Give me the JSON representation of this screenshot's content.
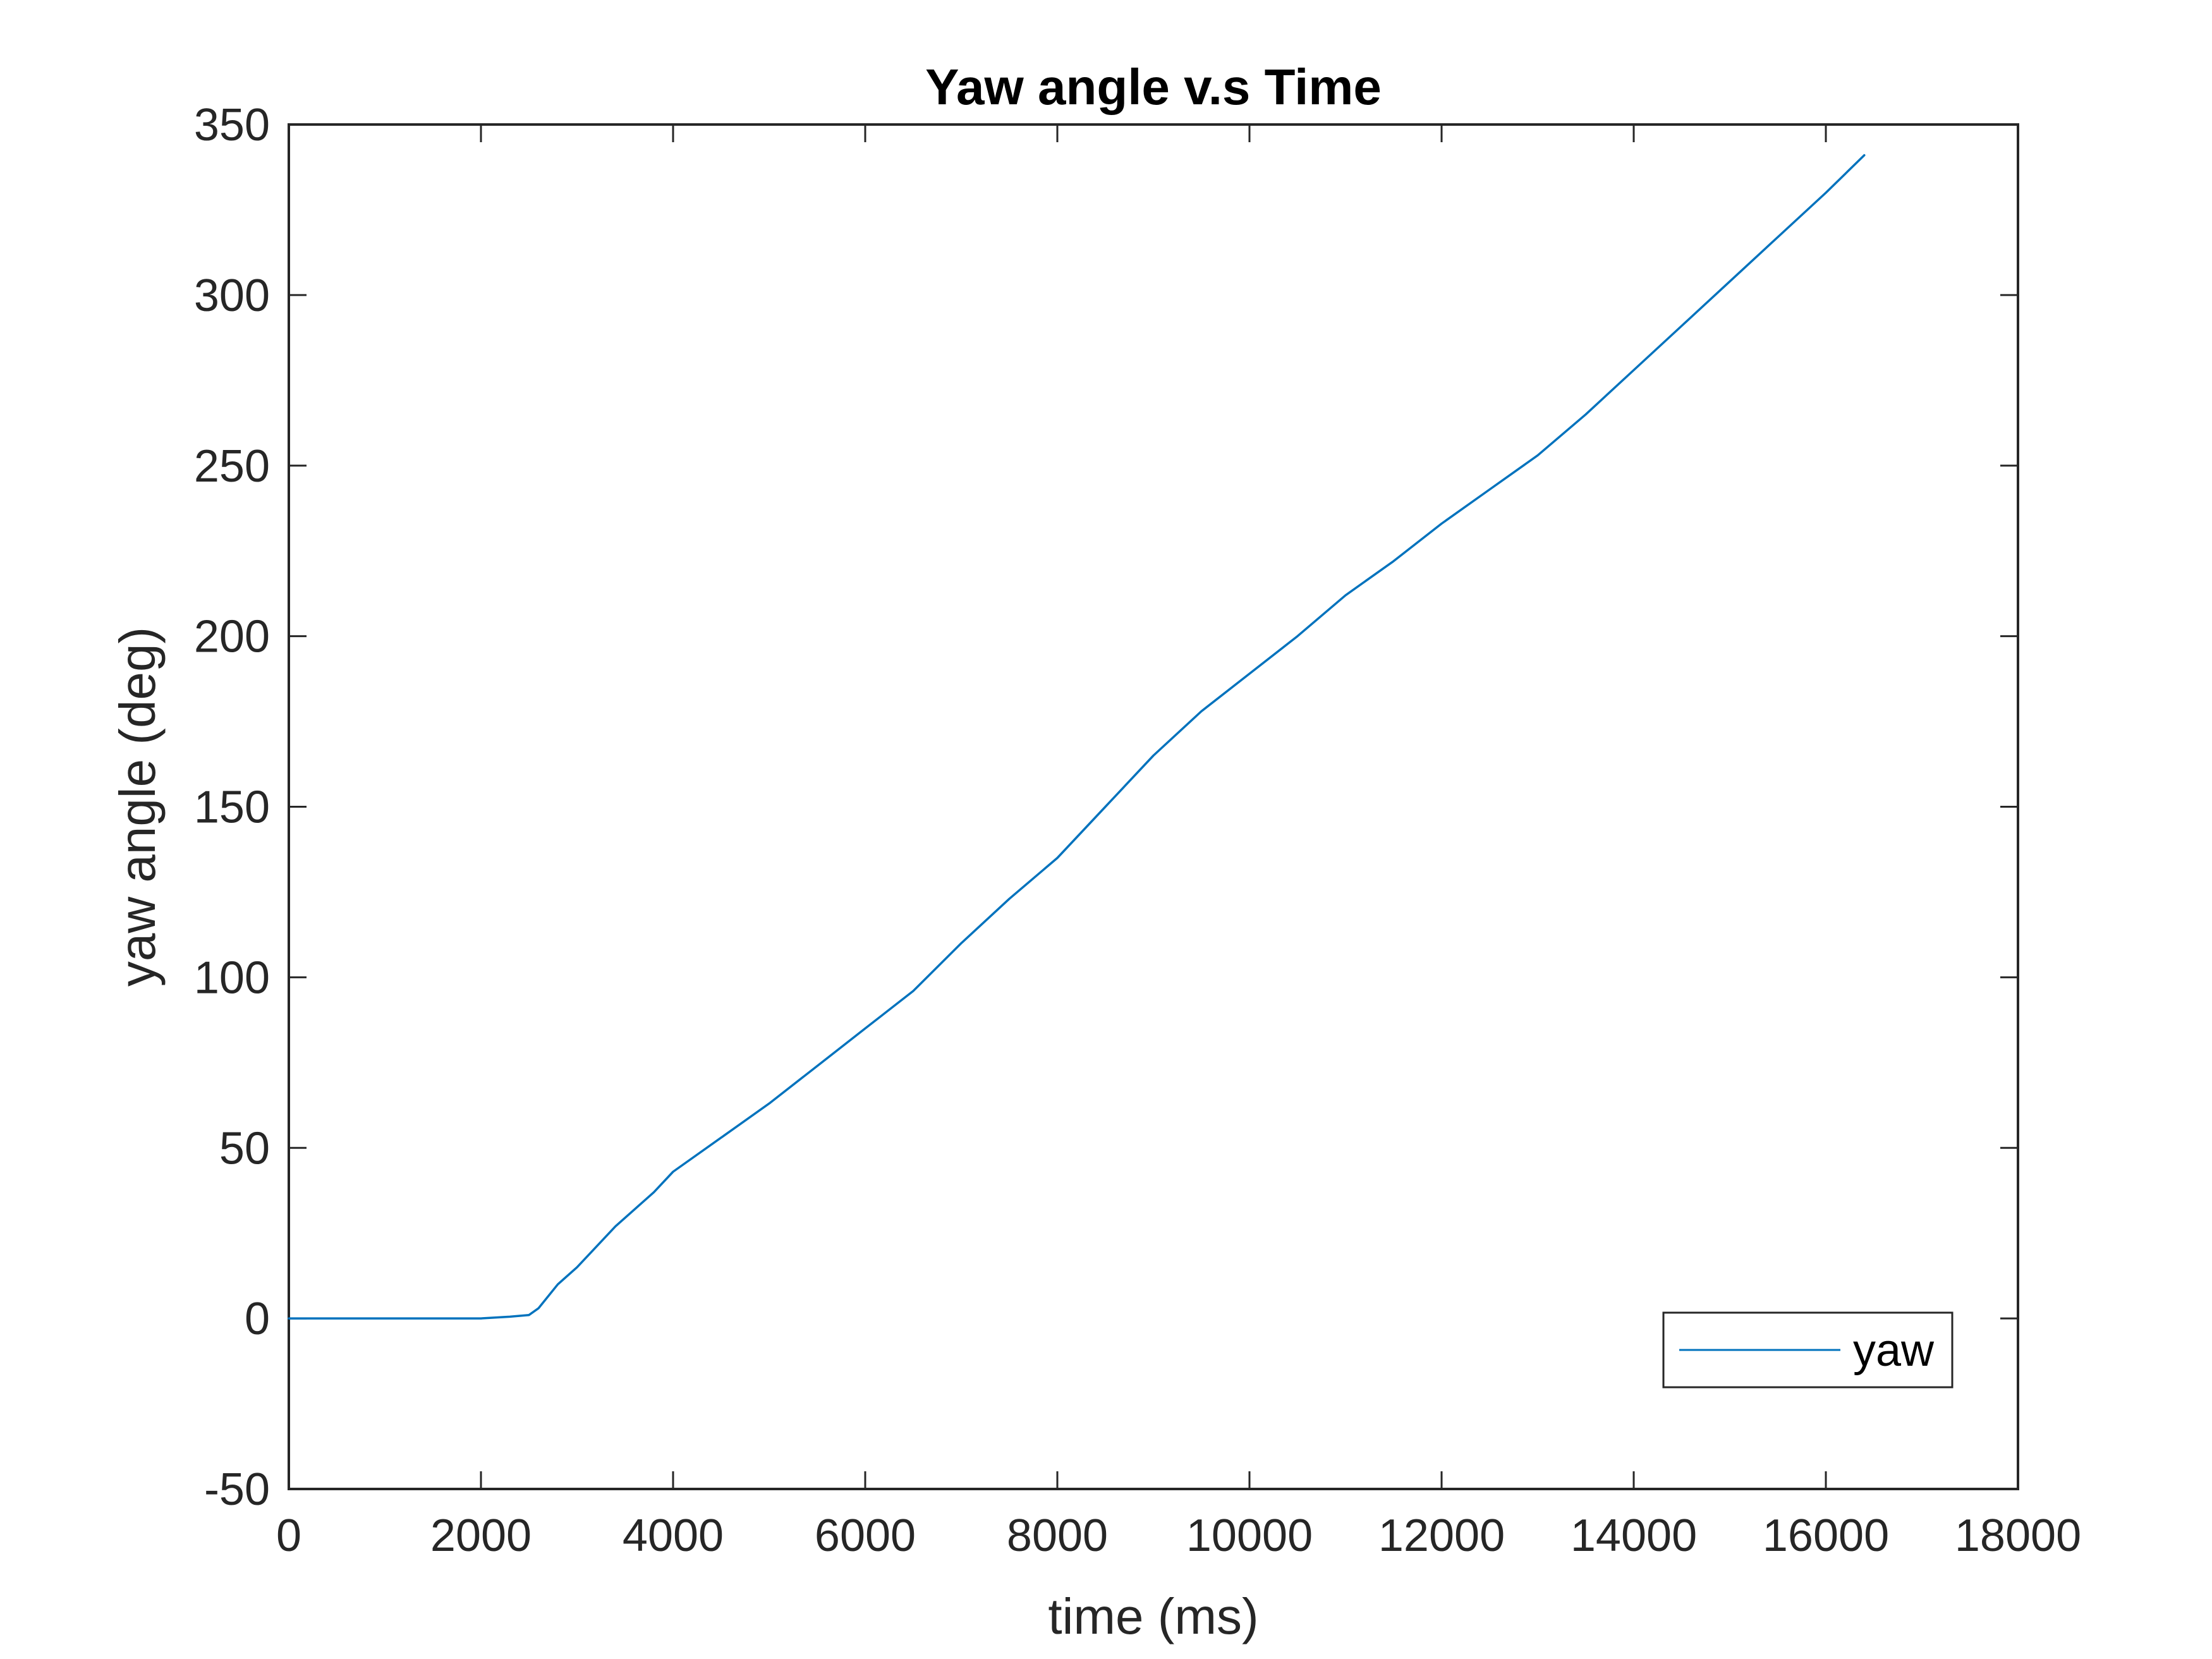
{
  "chart_data": {
    "type": "line",
    "title": "Yaw angle v.s Time",
    "xlabel": "time (ms)",
    "ylabel": "yaw angle (deg)",
    "xlim": [
      0,
      18000
    ],
    "ylim": [
      -50,
      350
    ],
    "xticks": [
      0,
      2000,
      4000,
      6000,
      8000,
      10000,
      12000,
      14000,
      16000,
      18000
    ],
    "yticks": [
      -50,
      0,
      50,
      100,
      150,
      200,
      250,
      300,
      350
    ],
    "grid": false,
    "legend_position": "bottom-right",
    "series": [
      {
        "name": "yaw",
        "color": "#0072BD",
        "x": [
          0,
          500,
          1000,
          1500,
          2000,
          2300,
          2500,
          2600,
          2800,
          3000,
          3200,
          3400,
          3600,
          3800,
          4000,
          4500,
          5000,
          5500,
          6000,
          6500,
          7000,
          7500,
          8000,
          8500,
          9000,
          9500,
          10000,
          10500,
          11000,
          11500,
          12000,
          12500,
          13000,
          13500,
          14000,
          14500,
          15000,
          15500,
          16000,
          16400
        ],
        "y": [
          0,
          0,
          0,
          0,
          0,
          0.5,
          1,
          3,
          10,
          15,
          21,
          27,
          32,
          37,
          43,
          53,
          63,
          74,
          85,
          96,
          110,
          123,
          135,
          150,
          165,
          178,
          189,
          200,
          212,
          222,
          233,
          243,
          253,
          265,
          278,
          291,
          304,
          317,
          330,
          341
        ]
      }
    ]
  }
}
